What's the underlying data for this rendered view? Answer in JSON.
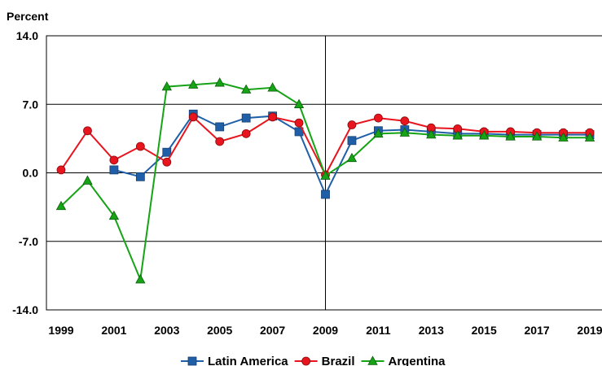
{
  "chart_data": {
    "type": "line",
    "ylabel": "Percent",
    "xlabel": "",
    "title": "",
    "ylim": [
      -14,
      14
    ],
    "yticks": [
      "14.0",
      "7.0",
      "0.0",
      "-7.0",
      "-14.0"
    ],
    "xlim": [
      1999,
      2019
    ],
    "xticks": [
      "1999",
      "2001",
      "2003",
      "2005",
      "2007",
      "2009",
      "2011",
      "2013",
      "2015",
      "2017",
      "2019"
    ],
    "reference_line_x": 2009,
    "gridlines_y": true,
    "legend_position": "bottom",
    "series": [
      {
        "name": "Latin America",
        "color": "#1f5fa8",
        "marker": "square",
        "points": [
          [
            2001,
            0.3
          ],
          [
            2002,
            -0.4
          ],
          [
            2003,
            2.1
          ],
          [
            2004,
            6.0
          ],
          [
            2005,
            4.7
          ],
          [
            2006,
            5.6
          ],
          [
            2007,
            5.8
          ],
          [
            2008,
            4.2
          ],
          [
            2009,
            -2.2
          ],
          [
            2010,
            3.3
          ],
          [
            2011,
            4.3
          ],
          [
            2012,
            4.4
          ],
          [
            2013,
            4.2
          ],
          [
            2014,
            4.0
          ],
          [
            2015,
            4.0
          ],
          [
            2016,
            3.9
          ],
          [
            2017,
            3.9
          ],
          [
            2018,
            3.9
          ],
          [
            2019,
            3.9
          ]
        ]
      },
      {
        "name": "Brazil",
        "color": "#e8141e",
        "marker": "circle",
        "points": [
          [
            1999,
            0.3
          ],
          [
            2000,
            4.3
          ],
          [
            2001,
            1.3
          ],
          [
            2002,
            2.7
          ],
          [
            2003,
            1.1
          ],
          [
            2004,
            5.7
          ],
          [
            2005,
            3.2
          ],
          [
            2006,
            4.0
          ],
          [
            2007,
            5.7
          ],
          [
            2008,
            5.1
          ],
          [
            2009,
            -0.2
          ],
          [
            2010,
            4.9
          ],
          [
            2011,
            5.6
          ],
          [
            2012,
            5.3
          ],
          [
            2013,
            4.6
          ],
          [
            2014,
            4.5
          ],
          [
            2015,
            4.2
          ],
          [
            2016,
            4.2
          ],
          [
            2017,
            4.1
          ],
          [
            2018,
            4.1
          ],
          [
            2019,
            4.1
          ]
        ]
      },
      {
        "name": "Argentina",
        "color": "#16a316",
        "marker": "triangle",
        "points": [
          [
            1999,
            -3.4
          ],
          [
            2000,
            -0.8
          ],
          [
            2001,
            -4.4
          ],
          [
            2002,
            -10.9
          ],
          [
            2003,
            8.8
          ],
          [
            2004,
            9.0
          ],
          [
            2005,
            9.2
          ],
          [
            2006,
            8.5
          ],
          [
            2007,
            8.7
          ],
          [
            2008,
            7.0
          ],
          [
            2009,
            -0.3
          ],
          [
            2010,
            1.5
          ],
          [
            2011,
            4.0
          ],
          [
            2012,
            4.1
          ],
          [
            2013,
            3.9
          ],
          [
            2014,
            3.8
          ],
          [
            2015,
            3.8
          ],
          [
            2016,
            3.7
          ],
          [
            2017,
            3.7
          ],
          [
            2018,
            3.6
          ],
          [
            2019,
            3.6
          ]
        ]
      }
    ]
  }
}
